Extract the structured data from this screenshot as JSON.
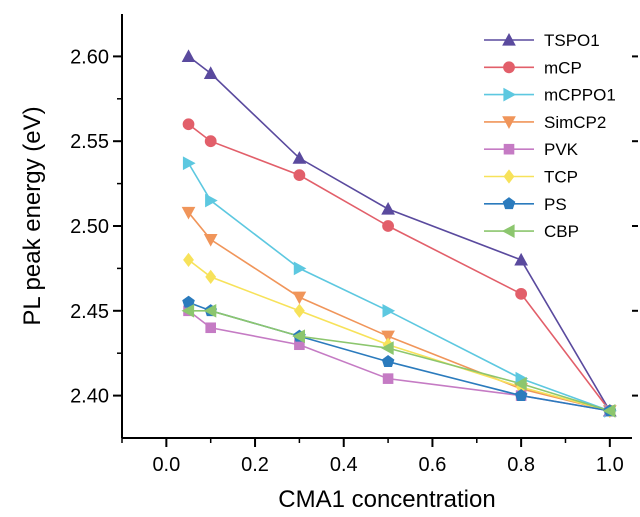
{
  "chart_data": {
    "type": "line",
    "xlabel": "CMA1 concentration",
    "ylabel": "PL peak energy (eV)",
    "xlim": [
      -0.1,
      1.05
    ],
    "ylim": [
      2.375,
      2.625
    ],
    "x_ticks": [
      0.0,
      0.2,
      0.4,
      0.6,
      0.8,
      1.0
    ],
    "x_tick_labels": [
      "0.0",
      "0.2",
      "0.4",
      "0.6",
      "0.8",
      "1.0"
    ],
    "y_ticks": [
      2.4,
      2.45,
      2.5,
      2.55,
      2.6
    ],
    "y_tick_labels": [
      "2.40",
      "2.45",
      "2.50",
      "2.55",
      "2.60"
    ],
    "grid": false,
    "legend_position": "top-right",
    "x": [
      0.05,
      0.1,
      0.3,
      0.5,
      0.8,
      1.0
    ],
    "series": [
      {
        "name": "TSPO1",
        "color": "#5a4a9e",
        "marker": "triangle-up",
        "values": [
          2.6,
          2.59,
          2.54,
          2.51,
          2.48,
          2.391
        ]
      },
      {
        "name": "mCP",
        "color": "#e25f6a",
        "marker": "circle",
        "values": [
          2.56,
          2.55,
          2.53,
          2.5,
          2.46,
          2.391
        ]
      },
      {
        "name": "mCPPO1",
        "color": "#5dc8e0",
        "marker": "triangle-right",
        "values": [
          2.537,
          2.515,
          2.475,
          2.45,
          2.41,
          2.391
        ]
      },
      {
        "name": "SimCP2",
        "color": "#f0955a",
        "marker": "triangle-down",
        "values": [
          2.508,
          2.492,
          2.458,
          2.435,
          2.404,
          2.391
        ]
      },
      {
        "name": "PVK",
        "color": "#c57bc4",
        "marker": "square",
        "values": [
          2.45,
          2.44,
          2.43,
          2.41,
          2.4,
          2.391
        ]
      },
      {
        "name": "TCP",
        "color": "#f7e25a",
        "marker": "diamond",
        "values": [
          2.48,
          2.47,
          2.45,
          2.43,
          2.405,
          2.391
        ]
      },
      {
        "name": "PS",
        "color": "#2b7bbd",
        "marker": "pentagon",
        "values": [
          2.455,
          2.45,
          2.435,
          2.42,
          2.4,
          2.391
        ]
      },
      {
        "name": "CBP",
        "color": "#8cc66e",
        "marker": "triangle-left",
        "values": [
          2.45,
          2.45,
          2.435,
          2.428,
          2.407,
          2.391
        ]
      }
    ]
  }
}
